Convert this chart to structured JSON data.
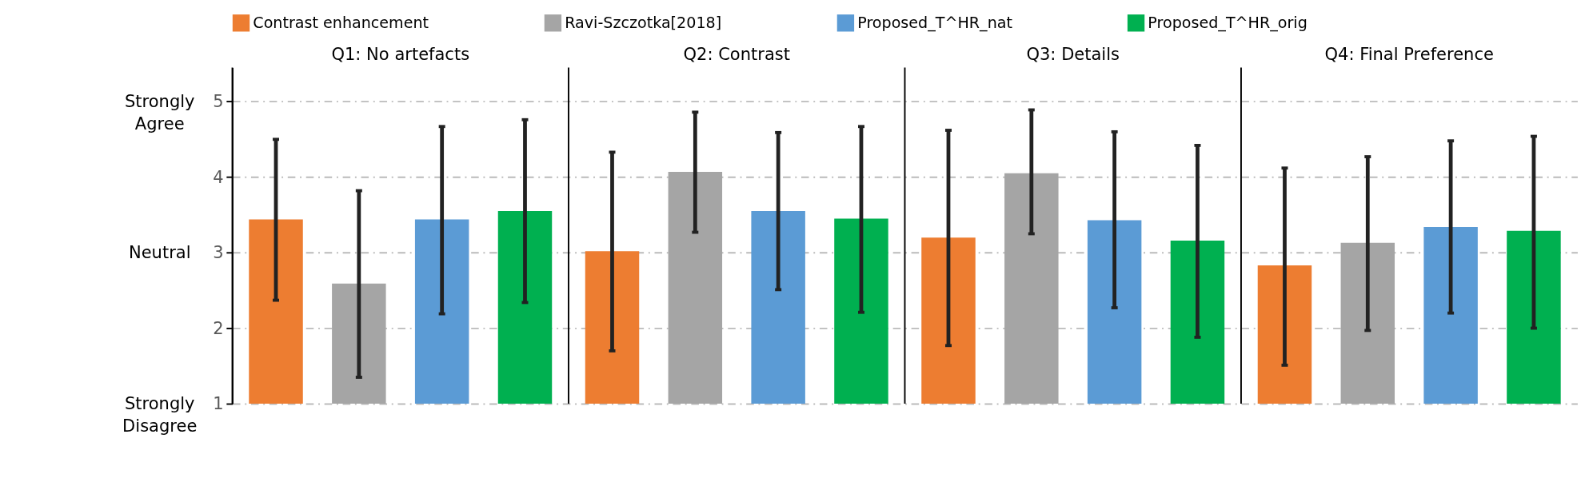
{
  "chart_data": {
    "type": "bar",
    "categories": [
      "Q1: No artefacts",
      "Q2: Contrast",
      "Q3: Details",
      "Q4: Final Preference"
    ],
    "series": [
      {
        "name": "Contrast enhancement",
        "color": "#ed7d31",
        "values": [
          3.44,
          3.02,
          3.2,
          2.83
        ],
        "errors": [
          [
            2.37,
            4.5
          ],
          [
            1.7,
            4.33
          ],
          [
            1.77,
            4.62
          ],
          [
            1.51,
            4.12
          ]
        ]
      },
      {
        "name": "Ravi-Szczotka[2018]",
        "color": "#a5a5a5",
        "values": [
          2.59,
          4.07,
          4.05,
          3.13
        ],
        "errors": [
          [
            1.35,
            3.82
          ],
          [
            3.27,
            4.86
          ],
          [
            3.25,
            4.89
          ],
          [
            1.97,
            4.27
          ]
        ]
      },
      {
        "name": "Proposed_T^HR_nat",
        "color": "#5b9bd5",
        "values": [
          3.44,
          3.55,
          3.43,
          3.34
        ],
        "errors": [
          [
            2.19,
            4.67
          ],
          [
            2.51,
            4.59
          ],
          [
            2.27,
            4.6
          ],
          [
            2.2,
            4.48
          ]
        ]
      },
      {
        "name": "Proposed_T^HR_orig",
        "color": "#00b050",
        "values": [
          3.55,
          3.45,
          3.16,
          3.29
        ],
        "errors": [
          [
            2.34,
            4.76
          ],
          [
            2.21,
            4.67
          ],
          [
            1.88,
            4.42
          ],
          [
            2.0,
            4.54
          ]
        ]
      }
    ],
    "ylim": [
      1,
      5.45
    ],
    "yticks": [
      1,
      2,
      3,
      4,
      5
    ],
    "grid": "y",
    "legend": "top",
    "annotations": [
      "Strongly Agree",
      "Neutral",
      "Strongly Disagree"
    ]
  }
}
